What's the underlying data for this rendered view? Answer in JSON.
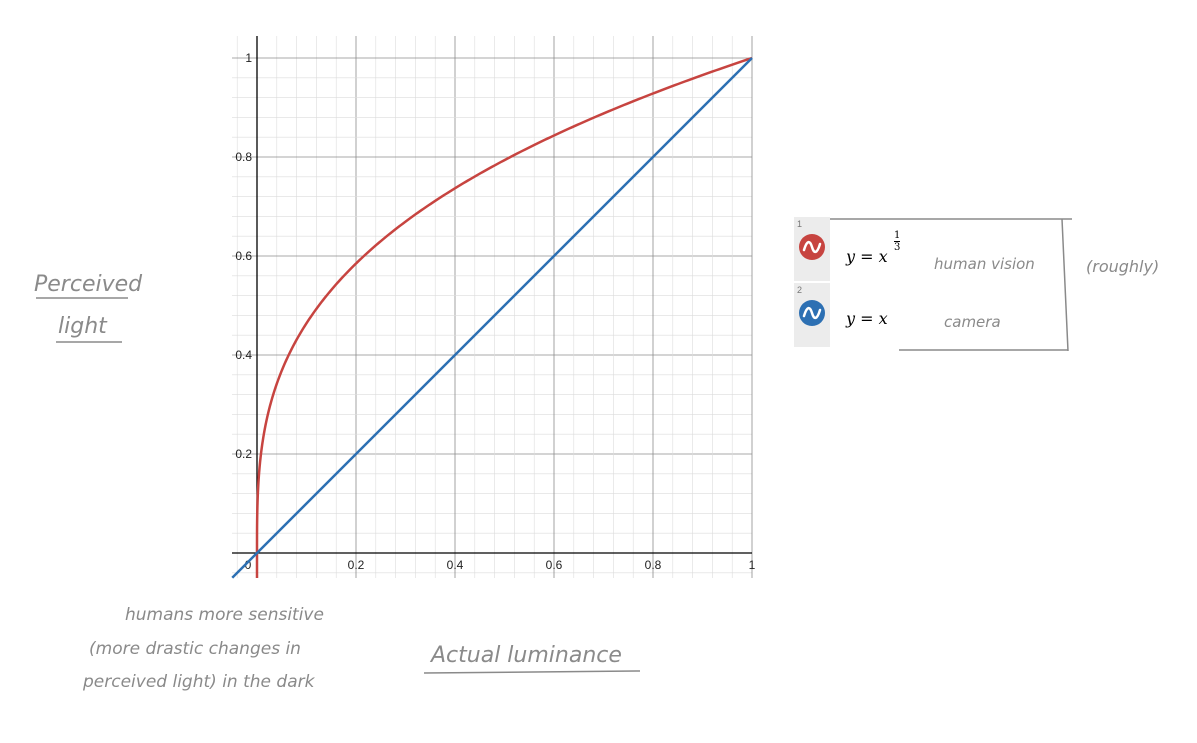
{
  "chart_data": {
    "type": "line",
    "xlim": [
      -0.05,
      1
    ],
    "ylim": [
      -0.05,
      1
    ],
    "grid": true,
    "x_ticks": [
      0,
      0.2,
      0.4,
      0.6,
      0.8,
      1
    ],
    "y_ticks": [
      0.2,
      0.4,
      0.6,
      0.8,
      1
    ],
    "x_tick_labels": [
      "0",
      "0.2",
      "0.4",
      "0.6",
      "0.8",
      "1"
    ],
    "y_tick_labels": [
      "0.2",
      "0.4",
      "0.6",
      "0.8",
      "1"
    ],
    "xlabel": "Actual luminance",
    "ylabel_line1": "Perceived",
    "ylabel_line2": "light",
    "series": [
      {
        "name": "human vision",
        "function": "y = x^(1/3)",
        "color": "#c74440",
        "x": [
          0,
          0.001,
          0.008,
          0.027,
          0.064,
          0.125,
          0.216,
          0.343,
          0.512,
          0.729,
          1
        ],
        "y": [
          0,
          0.1,
          0.2,
          0.3,
          0.4,
          0.5,
          0.6,
          0.7,
          0.8,
          0.9,
          1
        ]
      },
      {
        "name": "camera",
        "function": "y = x",
        "color": "#2d70b3",
        "x": [
          -0.05,
          0,
          0.2,
          0.4,
          0.6,
          0.8,
          1
        ],
        "y": [
          -0.05,
          0,
          0.2,
          0.4,
          0.6,
          0.8,
          1
        ]
      }
    ]
  },
  "legend": {
    "rows": [
      {
        "num": "1",
        "lhs": "y = x",
        "exp_num": "1",
        "exp_den": "3",
        "note": "human vision",
        "color": "#c74440"
      },
      {
        "num": "2",
        "lhs": "y = x",
        "note": "camera",
        "color": "#2d70b3"
      }
    ],
    "bracket_note": "(roughly)"
  },
  "annotation": {
    "lines": [
      "humans more sensitive",
      "(more drastic changes in",
      "perceived light) in the dark"
    ]
  }
}
